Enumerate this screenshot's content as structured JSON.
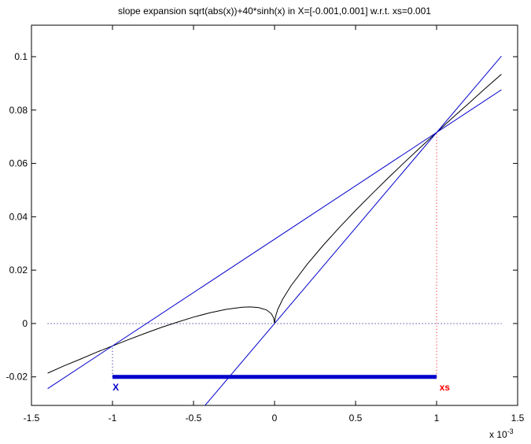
{
  "chart_data": {
    "type": "line",
    "title": "slope expansion sqrt(abs(x))+40*sinh(x) in X=[-0.001,0.001] w.r.t. xs=0.001",
    "x_multiplier": {
      "base": "x 10",
      "exponent": "-3"
    },
    "xlim": [
      -1.5,
      1.5
    ],
    "ylim": [
      -0.0307,
      0.1118
    ],
    "xticks": [
      -1.5,
      -1,
      -0.5,
      0,
      0.5,
      1,
      1.5
    ],
    "yticks": [
      -0.02,
      0,
      0.02,
      0.04,
      0.06,
      0.08,
      0.1
    ],
    "grid": false,
    "series": [
      {
        "color": "#000000",
        "style": "solid",
        "x": [
          -1.4,
          -1.3,
          -1.2,
          -1.1,
          -1.0,
          -0.9,
          -0.8,
          -0.7,
          -0.6,
          -0.5,
          -0.4,
          -0.3,
          -0.2,
          -0.15,
          -0.1,
          -0.05,
          -0.02,
          -0.005,
          0,
          0.005,
          0.02,
          0.05,
          0.1,
          0.2,
          0.3,
          0.4,
          0.5,
          0.6,
          0.7,
          0.8,
          0.9,
          1.0,
          1.1,
          1.2,
          1.3,
          1.4
        ],
        "values": [
          -0.0186,
          -0.0159,
          -0.0134,
          -0.0108,
          -0.0084,
          -0.006,
          -0.0037,
          -0.0015,
          0.0005,
          0.0024,
          0.004,
          0.0053,
          0.0061,
          0.0062,
          0.006,
          0.0051,
          0.0037,
          0.002,
          0,
          0.0024,
          0.0053,
          0.0091,
          0.014,
          0.0221,
          0.0293,
          0.036,
          0.0424,
          0.0485,
          0.0545,
          0.0603,
          0.066,
          0.0716,
          0.0772,
          0.0826,
          0.0881,
          0.0934
        ]
      },
      {
        "color": "#0000cc",
        "style": "solid",
        "x": [
          -0.429,
          1.4
        ],
        "values": [
          -0.0307,
          0.1002
        ]
      },
      {
        "color": "#0000cc",
        "style": "solid",
        "x": [
          -1.4,
          1.4
        ],
        "values": [
          -0.0244,
          0.0876
        ]
      },
      {
        "color": "#000080",
        "style": "dotted",
        "x": [
          -1.4,
          1.4
        ],
        "values": [
          0,
          0
        ]
      },
      {
        "color": "#ff0000",
        "style": "dotted",
        "x": [
          1,
          1
        ],
        "values": [
          -0.02,
          0.0716
        ]
      },
      {
        "color": "#000080",
        "style": "dotted",
        "x": [
          -1,
          -1
        ],
        "values": [
          -0.02,
          -0.0084
        ]
      },
      {
        "color": "#0000cc",
        "style": "thick",
        "x": [
          -1,
          1
        ],
        "values": [
          -0.02,
          -0.02
        ]
      }
    ],
    "annotations": [
      {
        "text": "X",
        "x": -0.98,
        "y": -0.0251,
        "color": "#0000cc"
      },
      {
        "text": "xs",
        "x": 1.05,
        "y": -0.0251,
        "color": "#ff0000"
      }
    ]
  }
}
